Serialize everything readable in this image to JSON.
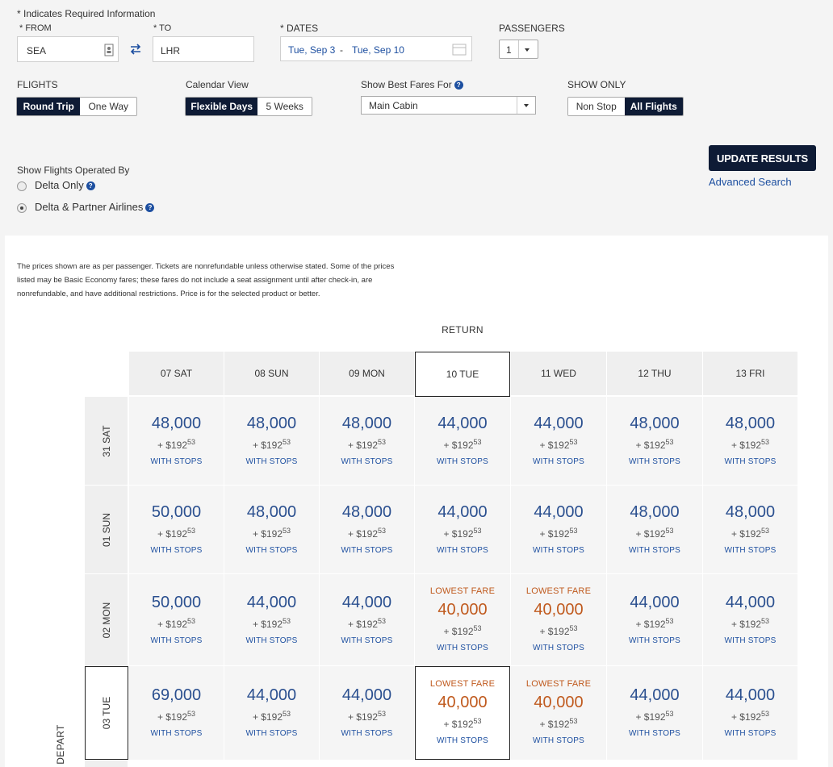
{
  "form": {
    "required_note": "* Indicates Required Information",
    "from_label": "* FROM",
    "from_value": "SEA",
    "to_label": "* TO",
    "to_value": "LHR",
    "dates_label": "* DATES",
    "date_depart": "Tue, Sep 3",
    "date_sep": "-",
    "date_return": "Tue, Sep 10",
    "passengers_label": "PASSENGERS",
    "passengers_value": "1",
    "flights_label": "FLIGHTS",
    "flights_options": [
      "Round Trip",
      "One Way"
    ],
    "calendar_label": "Calendar View",
    "calendar_options": [
      "Flexible Days",
      "5 Weeks"
    ],
    "best_fares_label": "Show Best Fares For",
    "best_fares_value": "Main Cabin",
    "show_only_label": "SHOW ONLY",
    "show_only_options": [
      "Non Stop",
      "All Flights"
    ],
    "operated_label": "Show Flights Operated By",
    "operated_options": [
      "Delta Only",
      "Delta & Partner Airlines"
    ],
    "update_button": "UPDATE RESULTS",
    "advanced_search": "Advanced Search"
  },
  "disclaimer": "The prices shown are as per passenger. Tickets are nonrefundable unless otherwise stated. Some of the prices listed may be Basic Economy fares; these fares do not include a seat assignment until after check-in, are nonrefundable, and have additional restrictions. Price is for the selected product or better.",
  "grid": {
    "return_label": "RETURN",
    "depart_label": "DEPART",
    "columns": [
      "07 SAT",
      "08 SUN",
      "09 MON",
      "10 TUE",
      "11 WED",
      "12 THU",
      "13 FRI"
    ],
    "rows": [
      {
        "label": "31 SAT",
        "cells": [
          {
            "miles": "48,000",
            "tax": "+ $192",
            "cents": "53",
            "stops": "WITH STOPS"
          },
          {
            "miles": "48,000",
            "tax": "+ $192",
            "cents": "53",
            "stops": "WITH STOPS"
          },
          {
            "miles": "48,000",
            "tax": "+ $192",
            "cents": "53",
            "stops": "WITH STOPS"
          },
          {
            "miles": "44,000",
            "tax": "+ $192",
            "cents": "53",
            "stops": "WITH STOPS"
          },
          {
            "miles": "44,000",
            "tax": "+ $192",
            "cents": "53",
            "stops": "WITH STOPS"
          },
          {
            "miles": "48,000",
            "tax": "+ $192",
            "cents": "53",
            "stops": "WITH STOPS"
          },
          {
            "miles": "48,000",
            "tax": "+ $192",
            "cents": "53",
            "stops": "WITH STOPS"
          }
        ]
      },
      {
        "label": "01 SUN",
        "cells": [
          {
            "miles": "50,000",
            "tax": "+ $192",
            "cents": "53",
            "stops": "WITH STOPS"
          },
          {
            "miles": "48,000",
            "tax": "+ $192",
            "cents": "53",
            "stops": "WITH STOPS"
          },
          {
            "miles": "48,000",
            "tax": "+ $192",
            "cents": "53",
            "stops": "WITH STOPS"
          },
          {
            "miles": "44,000",
            "tax": "+ $192",
            "cents": "53",
            "stops": "WITH STOPS"
          },
          {
            "miles": "44,000",
            "tax": "+ $192",
            "cents": "53",
            "stops": "WITH STOPS"
          },
          {
            "miles": "48,000",
            "tax": "+ $192",
            "cents": "53",
            "stops": "WITH STOPS"
          },
          {
            "miles": "48,000",
            "tax": "+ $192",
            "cents": "53",
            "stops": "WITH STOPS"
          }
        ]
      },
      {
        "label": "02 MON",
        "cells": [
          {
            "miles": "50,000",
            "tax": "+ $192",
            "cents": "53",
            "stops": "WITH STOPS"
          },
          {
            "miles": "44,000",
            "tax": "+ $192",
            "cents": "53",
            "stops": "WITH STOPS"
          },
          {
            "miles": "44,000",
            "tax": "+ $192",
            "cents": "53",
            "stops": "WITH STOPS"
          },
          {
            "lowest": "LOWEST FARE",
            "miles": "40,000",
            "tax": "+ $192",
            "cents": "53",
            "stops": "WITH STOPS"
          },
          {
            "lowest": "LOWEST FARE",
            "miles": "40,000",
            "tax": "+ $192",
            "cents": "53",
            "stops": "WITH STOPS"
          },
          {
            "miles": "44,000",
            "tax": "+ $192",
            "cents": "53",
            "stops": "WITH STOPS"
          },
          {
            "miles": "44,000",
            "tax": "+ $192",
            "cents": "53",
            "stops": "WITH STOPS"
          }
        ]
      },
      {
        "label": "03 TUE",
        "cells": [
          {
            "miles": "69,000",
            "tax": "+ $192",
            "cents": "53",
            "stops": "WITH STOPS"
          },
          {
            "miles": "44,000",
            "tax": "+ $192",
            "cents": "53",
            "stops": "WITH STOPS"
          },
          {
            "miles": "44,000",
            "tax": "+ $192",
            "cents": "53",
            "stops": "WITH STOPS"
          },
          {
            "lowest": "LOWEST FARE",
            "miles": "40,000",
            "tax": "+ $192",
            "cents": "53",
            "stops": "WITH STOPS"
          },
          {
            "lowest": "LOWEST FARE",
            "miles": "40,000",
            "tax": "+ $192",
            "cents": "53",
            "stops": "WITH STOPS"
          },
          {
            "miles": "44,000",
            "tax": "+ $192",
            "cents": "53",
            "stops": "WITH STOPS"
          },
          {
            "miles": "44,000",
            "tax": "+ $192",
            "cents": "53",
            "stops": "WITH STOPS"
          }
        ]
      }
    ]
  }
}
